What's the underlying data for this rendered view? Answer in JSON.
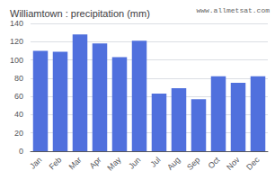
{
  "chart_data": {
    "type": "bar",
    "title": "Williamtown : precipitation (mm)",
    "annotation": "www.allmetsat.com",
    "categories": [
      "Jan",
      "Feb",
      "Mar",
      "Apr",
      "May",
      "Jun",
      "Jul",
      "Aug",
      "Sep",
      "Oct",
      "Nov",
      "Dec"
    ],
    "values": [
      110,
      109,
      128,
      118,
      103,
      121,
      63,
      69,
      57,
      82,
      75,
      82
    ],
    "ylim": [
      0,
      140
    ],
    "yticks": [
      0,
      20,
      40,
      60,
      80,
      100,
      120,
      140
    ],
    "grid": true
  }
}
